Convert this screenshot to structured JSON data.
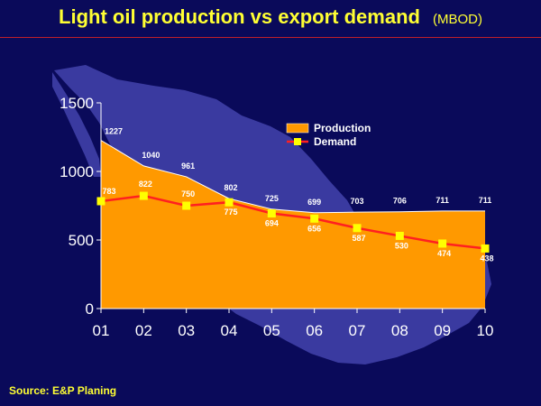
{
  "header": {
    "title": "Light oil production vs export demand",
    "unit": "(MBOD)"
  },
  "footer": {
    "source": "Source: E&P Planing"
  },
  "colors": {
    "background": "#0a0a5a",
    "map": "#3a3aa0",
    "production_fill": "#ff9900",
    "demand_line": "#ff2020",
    "demand_marker": "#ffff00",
    "title": "#ffff33"
  },
  "chart_data": {
    "type": "area",
    "title": "Light oil production vs export demand",
    "xlabel": "",
    "ylabel": "",
    "categories": [
      "01",
      "02",
      "03",
      "04",
      "05",
      "06",
      "07",
      "08",
      "09",
      "10"
    ],
    "ylim": [
      0,
      1500
    ],
    "yticks": [
      0,
      500,
      1000,
      1500
    ],
    "grid": false,
    "legend_position": "top-right",
    "series": [
      {
        "name": "Production",
        "type": "area",
        "values": [
          1227,
          1040,
          961,
          802,
          725,
          699,
          703,
          706,
          711,
          711
        ],
        "labels": [
          "1227",
          "1040",
          "961",
          "802",
          "725",
          "699",
          "703",
          "706",
          "711",
          "711"
        ]
      },
      {
        "name": "Demand",
        "type": "line",
        "values": [
          783,
          822,
          750,
          775,
          694,
          656,
          587,
          530,
          474,
          438
        ],
        "labels": [
          "783",
          "822",
          "750",
          "775",
          "694",
          "656",
          "587",
          "530",
          "474",
          "438"
        ]
      }
    ]
  }
}
